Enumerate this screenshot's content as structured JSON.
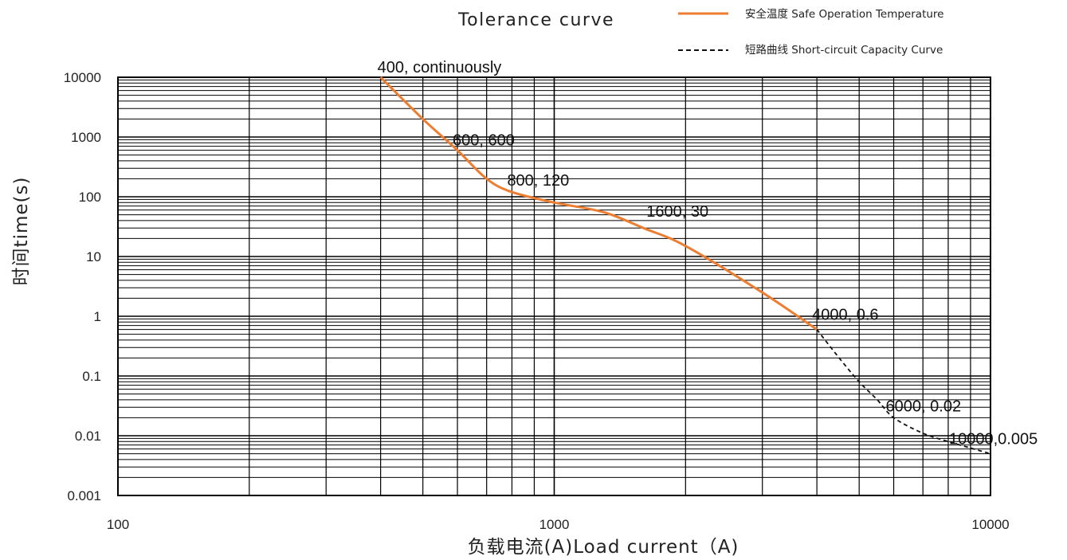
{
  "chart_data": {
    "type": "line",
    "title": "Tolerance curve",
    "xlabel": "负载电流(A)Load current（A)",
    "ylabel": "时间time(s)",
    "x_scale": "log",
    "y_scale": "log",
    "xlim": [
      100,
      10000
    ],
    "ylim": [
      0.001,
      10000
    ],
    "x_ticks": [
      "100",
      "1000",
      "10000"
    ],
    "y_ticks": [
      "10000",
      "1000",
      "100",
      "10",
      "1",
      "0.1",
      "0.01",
      "0.001"
    ],
    "grid": true,
    "legend_position": "top-right",
    "series": [
      {
        "name": "安全温度 Safe Operation Temperature",
        "color": "#ed7d31",
        "style": "solid",
        "x": [
          400,
          500,
          600,
          700,
          800,
          1000,
          1300,
          1600,
          2000,
          3000,
          4000
        ],
        "y": [
          10000,
          2000,
          600,
          200,
          120,
          80,
          55,
          30,
          15,
          2.5,
          0.6
        ]
      },
      {
        "name": "短路曲线 Short-circuit Capacity Curve",
        "color": "#111111",
        "style": "dashed",
        "x": [
          4000,
          4500,
          5000,
          5500,
          6000,
          7000,
          8000,
          10000
        ],
        "y": [
          0.6,
          0.2,
          0.08,
          0.04,
          0.02,
          0.011,
          0.008,
          0.005
        ]
      }
    ],
    "annotations": [
      {
        "text": "400, continuously",
        "x": 400,
        "y": 10000
      },
      {
        "text": "600, 600",
        "x": 600,
        "y": 600
      },
      {
        "text": "800, 120",
        "x": 800,
        "y": 120
      },
      {
        "text": "1600, 30",
        "x": 1600,
        "y": 30
      },
      {
        "text": "4000, 0.6",
        "x": 4000,
        "y": 0.6
      },
      {
        "text": "6000, 0.02",
        "x": 6000,
        "y": 0.02
      },
      {
        "text": "10000,0.005",
        "x": 10000,
        "y": 0.005
      }
    ]
  }
}
